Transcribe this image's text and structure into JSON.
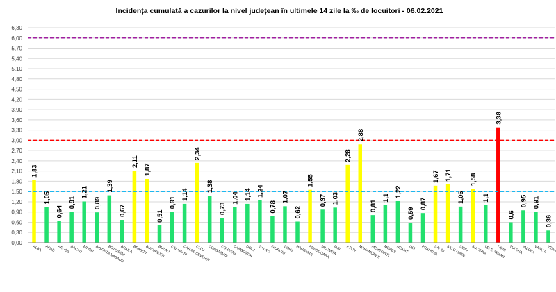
{
  "chart_data": {
    "type": "bar",
    "title": "Incidența cumulată a cazurilor la nivel județean în ultimele 14 zile la ‰ de locuitori - 06.02.2021",
    "xlabel": "",
    "ylabel": "",
    "ylim": [
      0,
      6.3
    ],
    "yticks": [
      "0,00",
      "0,30",
      "0,60",
      "0,90",
      "1,20",
      "1,50",
      "1,80",
      "2,10",
      "2,40",
      "2,70",
      "3,00",
      "3,30",
      "3,60",
      "3,90",
      "4,20",
      "4,50",
      "4,80",
      "5,10",
      "5,40",
      "5,70",
      "6,00",
      "6,30"
    ],
    "grid": true,
    "categories": [
      "ALBA",
      "ARAD",
      "ARGES",
      "BACAU",
      "BIHOR",
      "BISTRITA NASAUD",
      "BOTOSANI",
      "BRAILA",
      "BRASOV",
      "BUCURESTI",
      "BUZAU",
      "CALARASI",
      "CARAS-SEVERIN",
      "CLUJ",
      "CONSTANTA",
      "COVASNA",
      "DAMBOVITA",
      "DOLJ",
      "GALATI",
      "GIURGIU",
      "GORJ",
      "HARGHITA",
      "HUNEDOARA",
      "IALOMITA",
      "IASI",
      "ILFOV",
      "MARAMURES",
      "MEHEDINTI",
      "MURES",
      "NEAMT",
      "OLT",
      "PRAHOVA",
      "SALAJ",
      "SATU MARE",
      "SIBIU",
      "SUCEAVA",
      "TELEORMAN",
      "TIMIS",
      "TULCEA",
      "VALCEA",
      "VASLUI",
      "VRANCEA"
    ],
    "values": [
      1.83,
      1.05,
      0.64,
      0.91,
      1.21,
      0.89,
      1.39,
      0.67,
      2.11,
      1.87,
      0.51,
      0.91,
      1.14,
      2.34,
      1.38,
      0.73,
      1.04,
      1.14,
      1.24,
      0.78,
      1.07,
      0.62,
      1.55,
      0.97,
      1.03,
      2.28,
      2.88,
      0.81,
      1.1,
      1.22,
      0.59,
      0.87,
      1.67,
      1.71,
      1.06,
      1.58,
      1.1,
      3.38,
      0.6,
      0.95,
      0.91,
      0.36
    ],
    "value_labels": [
      "1,83",
      "1,05",
      "0,64",
      "0,91",
      "1,21",
      "0,89",
      "1,39",
      "0,67",
      "2,11",
      "1,87",
      "0,51",
      "0,91",
      "1,14",
      "2,34",
      "1,38",
      "0,73",
      "1,04",
      "1,14",
      "1,24",
      "0,78",
      "1,07",
      "0,62",
      "1,55",
      "0,97",
      "1,03",
      "2,28",
      "2,88",
      "0,81",
      "1,1",
      "1,22",
      "0,59",
      "0,87",
      "1,67",
      "1,71",
      "1,06",
      "1,58",
      "1,1",
      "3,38",
      "0,6",
      "0,95",
      "0,91",
      "0,36"
    ],
    "reference_lines": [
      {
        "value": 1.5,
        "color": "#00b0f0"
      },
      {
        "value": 3.0,
        "color": "#ff0000"
      },
      {
        "value": 6.0,
        "color": "#a020a0"
      }
    ],
    "colors": {
      "green": "#22e06e",
      "yellow": "#ffff00",
      "red": "#ff0000",
      "grid": "#d9d9d9",
      "axis": "#7f7f7f",
      "text": "#000000"
    },
    "bar_color_keys": [
      "yellow",
      "green",
      "green",
      "green",
      "green",
      "green",
      "green",
      "green",
      "yellow",
      "yellow",
      "green",
      "green",
      "green",
      "yellow",
      "green",
      "green",
      "green",
      "green",
      "green",
      "green",
      "green",
      "green",
      "yellow",
      "green",
      "green",
      "yellow",
      "yellow",
      "green",
      "green",
      "green",
      "green",
      "green",
      "yellow",
      "yellow",
      "green",
      "yellow",
      "green",
      "red",
      "green",
      "green",
      "green",
      "green"
    ]
  }
}
